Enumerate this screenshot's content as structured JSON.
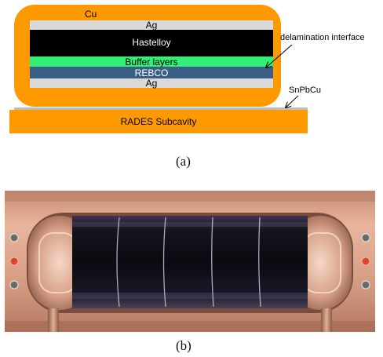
{
  "diagram": {
    "labels": {
      "cu": "Cu",
      "ag_top": "Ag",
      "hastelloy": "Hastelloy",
      "buffer": "Buffer layers",
      "rebco": "REBCO",
      "ag_bottom": "Ag",
      "delamination": "delamination interface",
      "snpbcu": "SnPbCu",
      "subcavity": "RADES Subcavity"
    },
    "colors": {
      "copper": "#ff9900",
      "silver": "#d9d9d9",
      "hastelloy": "#000000",
      "buffer": "#33ee77",
      "rebco": "#3a5f87",
      "solder": "#bcbcbc"
    }
  },
  "captions": {
    "a": "(a)",
    "b": "(b)"
  },
  "photo": {
    "description_icon": "photo-copper-cavity"
  }
}
